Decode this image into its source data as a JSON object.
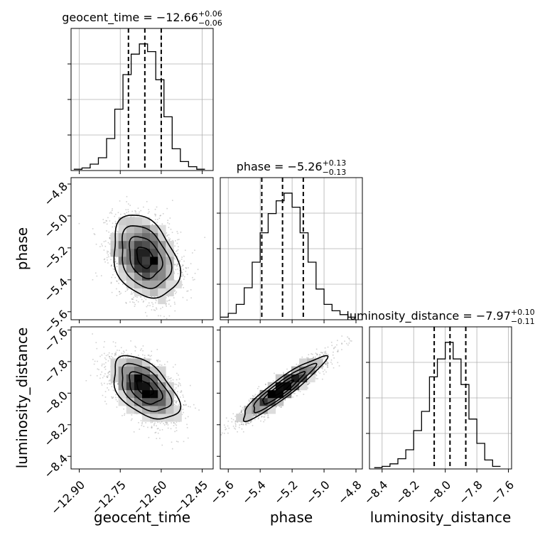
{
  "chart_data": {
    "type": "corner",
    "parameters": [
      "geocent_time",
      "phase",
      "luminosity_distance"
    ],
    "titles": [
      {
        "parameter": "geocent_time",
        "prefix": "geocent_time = ",
        "median": "−12.66",
        "plus": "+0.06",
        "minus": "−0.06"
      },
      {
        "parameter": "phase",
        "prefix": "phase = ",
        "median": "−5.26",
        "plus": "+0.13",
        "minus": "−0.13"
      },
      {
        "parameter": "luminosity_distance",
        "prefix": "luminosity_distance = ",
        "median": "−7.97",
        "plus": "+0.10",
        "minus": "−0.11"
      }
    ],
    "axis_labels": {
      "x": [
        "geocent_time",
        "phase",
        "luminosity_distance"
      ],
      "y": [
        "phase",
        "luminosity_distance"
      ]
    },
    "ranges": {
      "geocent_time": [
        -12.93,
        -12.41
      ],
      "phase": [
        -5.65,
        -4.76
      ],
      "luminosity_distance": [
        -8.48,
        -7.58
      ]
    },
    "ticks": {
      "geocent_time": [
        {
          "v": -12.9,
          "label": "−12.90"
        },
        {
          "v": -12.75,
          "label": "−12.75"
        },
        {
          "v": -12.6,
          "label": "−12.60"
        },
        {
          "v": -12.45,
          "label": "−12.45"
        }
      ],
      "phase": [
        {
          "v": -5.6,
          "label": "−5.6"
        },
        {
          "v": -5.4,
          "label": "−5.4"
        },
        {
          "v": -5.2,
          "label": "−5.2"
        },
        {
          "v": -5.0,
          "label": "−5.0"
        },
        {
          "v": -4.8,
          "label": "−4.8"
        }
      ],
      "luminosity_distance": [
        {
          "v": -8.4,
          "label": "−8.4"
        },
        {
          "v": -8.2,
          "label": "−8.2"
        },
        {
          "v": -8.0,
          "label": "−8.0"
        },
        {
          "v": -7.8,
          "label": "−7.8"
        },
        {
          "v": -7.6,
          "label": "−7.6"
        }
      ]
    },
    "histograms": {
      "geocent_time": {
        "bins": [
          -12.92,
          -12.89,
          -12.86,
          -12.83,
          -12.8,
          -12.77,
          -12.74,
          -12.71,
          -12.68,
          -12.65,
          -12.62,
          -12.59,
          -12.56,
          -12.53,
          -12.5,
          -12.47,
          -12.44
        ],
        "counts": [
          0.01,
          0.02,
          0.05,
          0.1,
          0.25,
          0.48,
          0.75,
          0.91,
          0.99,
          0.93,
          0.71,
          0.42,
          0.17,
          0.07,
          0.03,
          0.01
        ],
        "quantiles": [
          -12.72,
          -12.66,
          -12.6
        ]
      },
      "phase": {
        "bins": [
          -5.65,
          -5.6,
          -5.55,
          -5.5,
          -5.45,
          -5.4,
          -5.35,
          -5.3,
          -5.25,
          -5.2,
          -5.15,
          -5.1,
          -5.05,
          -5.0,
          -4.95,
          -4.9,
          -4.85,
          -4.8
        ],
        "counts": [
          0.02,
          0.05,
          0.12,
          0.25,
          0.45,
          0.68,
          0.83,
          0.93,
          0.99,
          0.88,
          0.68,
          0.45,
          0.24,
          0.12,
          0.07,
          0.04,
          0.02
        ],
        "quantiles": [
          -5.39,
          -5.26,
          -5.13
        ]
      },
      "luminosity_distance": {
        "bins": [
          -8.45,
          -8.4,
          -8.35,
          -8.3,
          -8.25,
          -8.2,
          -8.15,
          -8.1,
          -8.05,
          -8.0,
          -7.95,
          -7.9,
          -7.85,
          -7.8,
          -7.75,
          -7.7,
          -7.65
        ],
        "counts": [
          0.01,
          0.02,
          0.04,
          0.08,
          0.15,
          0.3,
          0.45,
          0.72,
          0.86,
          0.99,
          0.86,
          0.66,
          0.39,
          0.2,
          0.07,
          0.02
        ],
        "quantiles": [
          -8.07,
          -7.97,
          -7.87
        ]
      }
    },
    "pairs": [
      {
        "x": "geocent_time",
        "y": "phase",
        "mean": [
          -12.66,
          -5.26
        ],
        "sd": [
          0.06,
          0.13
        ],
        "rho": -0.3
      },
      {
        "x": "geocent_time",
        "y": "luminosity_distance",
        "mean": [
          -12.66,
          -7.97
        ],
        "sd": [
          0.06,
          0.1
        ],
        "rho": -0.5
      },
      {
        "x": "phase",
        "y": "luminosity_distance",
        "mean": [
          -5.26,
          -7.97
        ],
        "sd": [
          0.13,
          0.1
        ],
        "rho": 0.93
      }
    ],
    "grid": true,
    "colors": {
      "line": "#000000",
      "grid": "#b0b0b0",
      "points": "#000000"
    }
  }
}
